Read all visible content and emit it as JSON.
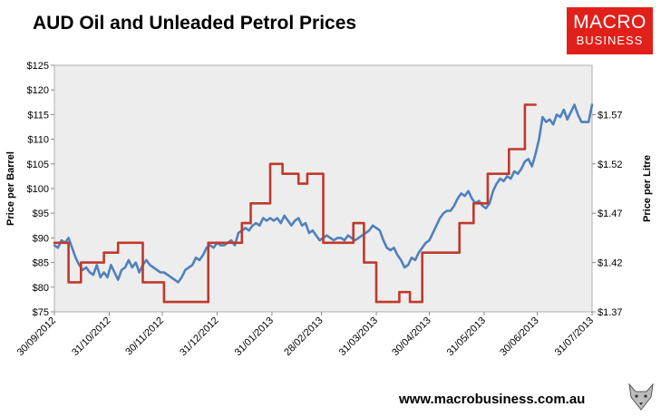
{
  "header": {
    "title": "AUD Oil and Unleaded Petrol Prices"
  },
  "logo": {
    "line1": "MACRO",
    "line2": "BUSINESS",
    "color": "#e2201a"
  },
  "footer": {
    "url": "www.macrobusiness.com.au"
  },
  "chart_data": {
    "type": "line",
    "title": "AUD Oil and Unleaded Petrol Prices",
    "ylabel": "Price per Barrel",
    "y2label": "Price per Litre",
    "ylim": [
      75,
      125
    ],
    "y2lim": [
      1.37,
      1.62
    ],
    "yticks": [
      "$75",
      "$80",
      "$85",
      "$90",
      "$95",
      "$100",
      "$105",
      "$110",
      "$115",
      "$120",
      "$125"
    ],
    "y2ticks": [
      "$1.37",
      "$1.42",
      "$1.47",
      "$1.52",
      "$1.57"
    ],
    "xticks": [
      "30/09/2012",
      "31/10/2012",
      "30/11/2012",
      "31/12/2012",
      "31/01/2013",
      "28/02/2013",
      "31/03/2013",
      "30/04/2013",
      "31/05/2013",
      "30/06/2013",
      "31/07/2013"
    ],
    "grid": false,
    "legend": "none",
    "series": [
      {
        "axis": "left",
        "color": "#4f81bd",
        "points": [
          [
            "2012-09-30",
            88.5
          ],
          [
            "2012-10-02",
            88.0
          ],
          [
            "2012-10-04",
            89.5
          ],
          [
            "2012-10-06",
            89.0
          ],
          [
            "2012-10-08",
            90.0
          ],
          [
            "2012-10-10",
            88.0
          ],
          [
            "2012-10-12",
            86.0
          ],
          [
            "2012-10-14",
            84.5
          ],
          [
            "2012-10-16",
            83.5
          ],
          [
            "2012-10-18",
            84.0
          ],
          [
            "2012-10-20",
            83.0
          ],
          [
            "2012-10-22",
            82.5
          ],
          [
            "2012-10-24",
            84.5
          ],
          [
            "2012-10-26",
            82.0
          ],
          [
            "2012-10-28",
            83.0
          ],
          [
            "2012-10-30",
            82.0
          ],
          [
            "2012-11-01",
            84.5
          ],
          [
            "2012-11-03",
            83.0
          ],
          [
            "2012-11-05",
            81.5
          ],
          [
            "2012-11-07",
            83.5
          ],
          [
            "2012-11-09",
            84.0
          ],
          [
            "2012-11-11",
            85.5
          ],
          [
            "2012-11-13",
            84.0
          ],
          [
            "2012-11-15",
            85.0
          ],
          [
            "2012-11-17",
            83.0
          ],
          [
            "2012-11-19",
            84.5
          ],
          [
            "2012-11-21",
            85.5
          ],
          [
            "2012-11-23",
            84.5
          ],
          [
            "2012-11-25",
            84.0
          ],
          [
            "2012-11-27",
            83.5
          ],
          [
            "2012-11-29",
            83.0
          ],
          [
            "2012-12-01",
            83.0
          ],
          [
            "2012-12-03",
            82.5
          ],
          [
            "2012-12-05",
            82.0
          ],
          [
            "2012-12-07",
            81.5
          ],
          [
            "2012-12-09",
            81.0
          ],
          [
            "2012-12-11",
            82.0
          ],
          [
            "2012-12-13",
            83.5
          ],
          [
            "2012-12-15",
            84.0
          ],
          [
            "2012-12-17",
            84.5
          ],
          [
            "2012-12-19",
            86.0
          ],
          [
            "2012-12-21",
            85.5
          ],
          [
            "2012-12-23",
            86.5
          ],
          [
            "2012-12-25",
            88.0
          ],
          [
            "2012-12-27",
            88.5
          ],
          [
            "2012-12-29",
            88.0
          ],
          [
            "2012-12-31",
            89.0
          ],
          [
            "2013-01-02",
            88.5
          ],
          [
            "2013-01-04",
            88.5
          ],
          [
            "2013-01-06",
            89.0
          ],
          [
            "2013-01-08",
            89.5
          ],
          [
            "2013-01-10",
            88.5
          ],
          [
            "2013-01-12",
            91.0
          ],
          [
            "2013-01-14",
            91.5
          ],
          [
            "2013-01-16",
            92.0
          ],
          [
            "2013-01-18",
            91.5
          ],
          [
            "2013-01-20",
            92.5
          ],
          [
            "2013-01-22",
            93.0
          ],
          [
            "2013-01-24",
            92.5
          ],
          [
            "2013-01-26",
            94.0
          ],
          [
            "2013-01-28",
            93.5
          ],
          [
            "2013-01-30",
            94.0
          ],
          [
            "2013-02-01",
            93.5
          ],
          [
            "2013-02-03",
            94.0
          ],
          [
            "2013-02-05",
            93.0
          ],
          [
            "2013-02-07",
            94.5
          ],
          [
            "2013-02-09",
            93.5
          ],
          [
            "2013-02-11",
            92.5
          ],
          [
            "2013-02-13",
            93.5
          ],
          [
            "2013-02-15",
            94.0
          ],
          [
            "2013-02-17",
            92.5
          ],
          [
            "2013-02-19",
            93.0
          ],
          [
            "2013-02-21",
            91.0
          ],
          [
            "2013-02-23",
            91.5
          ],
          [
            "2013-02-25",
            90.5
          ],
          [
            "2013-02-27",
            89.5
          ],
          [
            "2013-03-01",
            90.0
          ],
          [
            "2013-03-03",
            90.5
          ],
          [
            "2013-03-05",
            90.0
          ],
          [
            "2013-03-07",
            89.5
          ],
          [
            "2013-03-09",
            90.0
          ],
          [
            "2013-03-11",
            90.0
          ],
          [
            "2013-03-13",
            89.5
          ],
          [
            "2013-03-15",
            90.5
          ],
          [
            "2013-03-17",
            90.0
          ],
          [
            "2013-03-19",
            89.5
          ],
          [
            "2013-03-21",
            90.0
          ],
          [
            "2013-03-23",
            90.5
          ],
          [
            "2013-03-25",
            91.0
          ],
          [
            "2013-03-27",
            91.5
          ],
          [
            "2013-03-29",
            92.5
          ],
          [
            "2013-03-31",
            92.0
          ],
          [
            "2013-04-02",
            91.5
          ],
          [
            "2013-04-04",
            89.5
          ],
          [
            "2013-04-06",
            88.0
          ],
          [
            "2013-04-08",
            87.5
          ],
          [
            "2013-04-10",
            88.0
          ],
          [
            "2013-04-12",
            86.5
          ],
          [
            "2013-04-14",
            85.5
          ],
          [
            "2013-04-16",
            84.0
          ],
          [
            "2013-04-18",
            84.5
          ],
          [
            "2013-04-20",
            86.0
          ],
          [
            "2013-04-22",
            85.5
          ],
          [
            "2013-04-24",
            87.0
          ],
          [
            "2013-04-26",
            88.0
          ],
          [
            "2013-04-28",
            89.0
          ],
          [
            "2013-04-30",
            89.5
          ],
          [
            "2013-05-02",
            91.0
          ],
          [
            "2013-05-04",
            92.5
          ],
          [
            "2013-05-06",
            94.0
          ],
          [
            "2013-05-08",
            95.0
          ],
          [
            "2013-05-10",
            95.5
          ],
          [
            "2013-05-12",
            95.5
          ],
          [
            "2013-05-14",
            96.5
          ],
          [
            "2013-05-16",
            98.0
          ],
          [
            "2013-05-18",
            99.0
          ],
          [
            "2013-05-20",
            98.5
          ],
          [
            "2013-05-22",
            99.5
          ],
          [
            "2013-05-24",
            98.0
          ],
          [
            "2013-05-26",
            97.0
          ],
          [
            "2013-05-28",
            97.5
          ],
          [
            "2013-05-30",
            96.5
          ],
          [
            "2013-06-01",
            96.0
          ],
          [
            "2013-06-03",
            97.0
          ],
          [
            "2013-06-05",
            99.5
          ],
          [
            "2013-06-07",
            101.0
          ],
          [
            "2013-06-09",
            102.0
          ],
          [
            "2013-06-11",
            101.5
          ],
          [
            "2013-06-13",
            102.5
          ],
          [
            "2013-06-15",
            102.0
          ],
          [
            "2013-06-17",
            103.5
          ],
          [
            "2013-06-19",
            103.0
          ],
          [
            "2013-06-21",
            104.0
          ],
          [
            "2013-06-23",
            105.5
          ],
          [
            "2013-06-25",
            106.0
          ],
          [
            "2013-06-27",
            104.5
          ],
          [
            "2013-06-29",
            107.0
          ],
          [
            "2013-07-01",
            110.0
          ],
          [
            "2013-07-03",
            114.5
          ],
          [
            "2013-07-05",
            113.5
          ],
          [
            "2013-07-07",
            114.0
          ],
          [
            "2013-07-09",
            113.0
          ],
          [
            "2013-07-11",
            115.0
          ],
          [
            "2013-07-13",
            114.5
          ],
          [
            "2013-07-15",
            116.0
          ],
          [
            "2013-07-17",
            114.0
          ],
          [
            "2013-07-19",
            115.5
          ],
          [
            "2013-07-21",
            117.0
          ],
          [
            "2013-07-23",
            115.0
          ],
          [
            "2013-07-25",
            113.5
          ],
          [
            "2013-07-27",
            113.5
          ],
          [
            "2013-07-29",
            113.5
          ],
          [
            "2013-07-31",
            117.0
          ]
        ]
      },
      {
        "axis": "right",
        "color": "#c0392b",
        "step": true,
        "points": [
          [
            "2012-09-30",
            1.44
          ],
          [
            "2012-10-08",
            1.44
          ],
          [
            "2012-10-08",
            1.4
          ],
          [
            "2012-10-15",
            1.4
          ],
          [
            "2012-10-15",
            1.42
          ],
          [
            "2012-10-28",
            1.42
          ],
          [
            "2012-10-28",
            1.43
          ],
          [
            "2012-11-05",
            1.43
          ],
          [
            "2012-11-05",
            1.44
          ],
          [
            "2012-11-19",
            1.44
          ],
          [
            "2012-11-19",
            1.4
          ],
          [
            "2012-12-01",
            1.4
          ],
          [
            "2012-12-01",
            1.38
          ],
          [
            "2012-12-26",
            1.38
          ],
          [
            "2012-12-26",
            1.44
          ],
          [
            "2013-01-14",
            1.44
          ],
          [
            "2013-01-14",
            1.46
          ],
          [
            "2013-01-19",
            1.46
          ],
          [
            "2013-01-19",
            1.48
          ],
          [
            "2013-01-30",
            1.48
          ],
          [
            "2013-01-30",
            1.52
          ],
          [
            "2013-02-06",
            1.52
          ],
          [
            "2013-02-06",
            1.51
          ],
          [
            "2013-02-15",
            1.51
          ],
          [
            "2013-02-15",
            1.5
          ],
          [
            "2013-02-20",
            1.5
          ],
          [
            "2013-02-20",
            1.51
          ],
          [
            "2013-03-01",
            1.51
          ],
          [
            "2013-03-01",
            1.44
          ],
          [
            "2013-03-18",
            1.44
          ],
          [
            "2013-03-18",
            1.46
          ],
          [
            "2013-03-24",
            1.46
          ],
          [
            "2013-03-24",
            1.42
          ],
          [
            "2013-03-31",
            1.42
          ],
          [
            "2013-03-31",
            1.38
          ],
          [
            "2013-04-13",
            1.38
          ],
          [
            "2013-04-13",
            1.39
          ],
          [
            "2013-04-19",
            1.39
          ],
          [
            "2013-04-19",
            1.38
          ],
          [
            "2013-04-26",
            1.38
          ],
          [
            "2013-04-26",
            1.43
          ],
          [
            "2013-05-17",
            1.43
          ],
          [
            "2013-05-17",
            1.46
          ],
          [
            "2013-05-25",
            1.46
          ],
          [
            "2013-05-25",
            1.48
          ],
          [
            "2013-06-02",
            1.48
          ],
          [
            "2013-06-02",
            1.51
          ],
          [
            "2013-06-14",
            1.51
          ],
          [
            "2013-06-14",
            1.535
          ],
          [
            "2013-06-23",
            1.535
          ],
          [
            "2013-06-23",
            1.58
          ],
          [
            "2013-06-29",
            1.58
          ]
        ]
      }
    ]
  }
}
